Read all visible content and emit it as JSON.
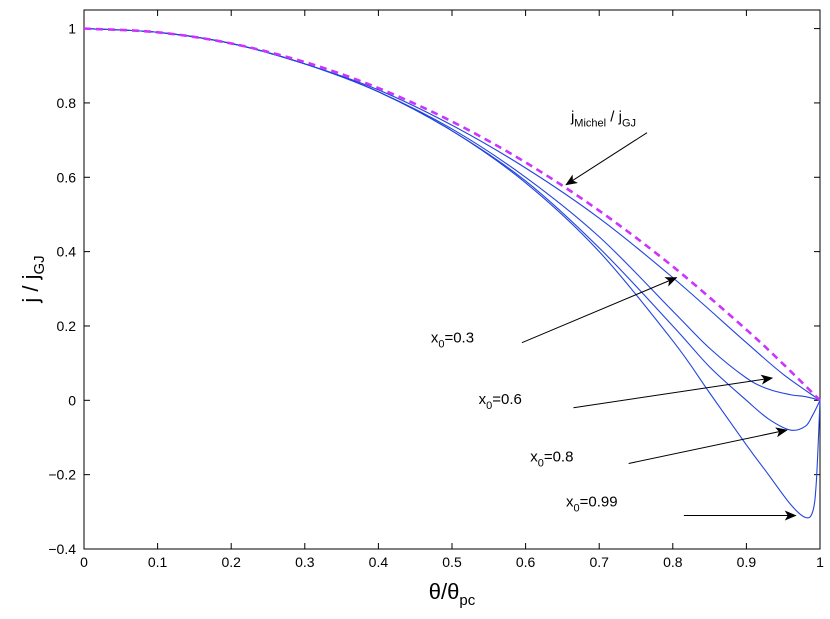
{
  "chart_data": {
    "type": "line",
    "title": "",
    "xlabel": {
      "base": "θ/θ",
      "sub": "pc"
    },
    "ylabel": {
      "base": "j / j",
      "sub": "GJ"
    },
    "xlim": [
      0,
      1
    ],
    "ylim": [
      -0.4,
      1.05
    ],
    "xticks": [
      0,
      0.1,
      0.2,
      0.3,
      0.4,
      0.5,
      0.6,
      0.7,
      0.8,
      0.9,
      1
    ],
    "yticks": [
      -0.4,
      -0.2,
      0,
      0.2,
      0.4,
      0.6,
      0.8,
      1
    ],
    "xtick_labels": [
      "0",
      "0.1",
      "0.2",
      "0.3",
      "0.4",
      "0.5",
      "0.6",
      "0.7",
      "0.8",
      "0.9",
      "1"
    ],
    "ytick_labels": [
      "−0.4",
      "−0.2",
      "0",
      "0.2",
      "0.4",
      "0.6",
      "0.8",
      "1"
    ],
    "grid": false,
    "series": [
      {
        "name": "j_Michel / j_GJ",
        "style": "dashed",
        "color": "#cc33ff",
        "x": [
          0,
          0.1,
          0.2,
          0.3,
          0.4,
          0.5,
          0.6,
          0.7,
          0.8,
          0.9,
          0.95,
          1.0
        ],
        "y": [
          1.0,
          0.99,
          0.96,
          0.91,
          0.84,
          0.75,
          0.64,
          0.51,
          0.36,
          0.19,
          0.0975,
          0.0
        ]
      },
      {
        "name": "x0=0.3",
        "style": "solid",
        "color": "#2244dd",
        "x": [
          0,
          0.1,
          0.2,
          0.3,
          0.4,
          0.5,
          0.6,
          0.7,
          0.8,
          0.9,
          0.95,
          1.0
        ],
        "y": [
          1.0,
          0.99,
          0.96,
          0.905,
          0.835,
          0.74,
          0.625,
          0.49,
          0.33,
          0.155,
          0.07,
          0.0
        ]
      },
      {
        "name": "x0=0.6",
        "style": "solid",
        "color": "#2244dd",
        "x": [
          0,
          0.1,
          0.2,
          0.3,
          0.4,
          0.5,
          0.6,
          0.7,
          0.8,
          0.85,
          0.9,
          0.93,
          0.96,
          0.98,
          1.0
        ],
        "y": [
          1.0,
          0.99,
          0.96,
          0.905,
          0.83,
          0.73,
          0.6,
          0.44,
          0.24,
          0.14,
          0.06,
          0.03,
          0.015,
          0.01,
          0.0
        ]
      },
      {
        "name": "x0=0.8",
        "style": "solid",
        "color": "#2244dd",
        "x": [
          0,
          0.1,
          0.2,
          0.3,
          0.4,
          0.5,
          0.6,
          0.7,
          0.8,
          0.85,
          0.9,
          0.93,
          0.96,
          0.98,
          0.99,
          1.0
        ],
        "y": [
          1.0,
          0.99,
          0.96,
          0.905,
          0.83,
          0.725,
          0.59,
          0.41,
          0.2,
          0.09,
          0.0,
          -0.05,
          -0.08,
          -0.07,
          -0.04,
          0.0
        ]
      },
      {
        "name": "x0=0.99",
        "style": "solid",
        "color": "#2244dd",
        "x": [
          0,
          0.1,
          0.2,
          0.3,
          0.4,
          0.5,
          0.6,
          0.7,
          0.8,
          0.85,
          0.9,
          0.93,
          0.96,
          0.98,
          0.99,
          0.995,
          1.0
        ],
        "y": [
          1.0,
          0.99,
          0.96,
          0.905,
          0.83,
          0.725,
          0.585,
          0.4,
          0.16,
          0.02,
          -0.12,
          -0.2,
          -0.28,
          -0.315,
          -0.3,
          -0.22,
          0.0
        ]
      }
    ],
    "annotations": [
      {
        "label": {
          "base": "j",
          "sub": "Michel",
          "mid": " / j",
          "sub2": "GJ"
        },
        "text_at": [
          0.75,
          0.75
        ],
        "arrow_from": [
          0.765,
          0.72
        ],
        "arrow_to": [
          0.655,
          0.58
        ]
      },
      {
        "label": {
          "base": "x",
          "sub": "0",
          "rest": "=0.3"
        },
        "text_at": [
          0.53,
          0.155
        ],
        "arrow_from": [
          0.595,
          0.155
        ],
        "arrow_to": [
          0.805,
          0.33
        ]
      },
      {
        "label": {
          "base": "x",
          "sub": "0",
          "rest": "=0.6"
        },
        "text_at": [
          0.595,
          -0.01
        ],
        "arrow_from": [
          0.665,
          -0.02
        ],
        "arrow_to": [
          0.935,
          0.06
        ]
      },
      {
        "label": {
          "base": "x",
          "sub": "0",
          "rest": "=0.8"
        },
        "text_at": [
          0.665,
          -0.165
        ],
        "arrow_from": [
          0.74,
          -0.17
        ],
        "arrow_to": [
          0.955,
          -0.08
        ]
      },
      {
        "label": {
          "base": "x",
          "sub": "0",
          "rest": "=0.99"
        },
        "text_at": [
          0.725,
          -0.285
        ],
        "arrow_from": [
          0.815,
          -0.31
        ],
        "arrow_to": [
          0.967,
          -0.31
        ]
      }
    ]
  }
}
